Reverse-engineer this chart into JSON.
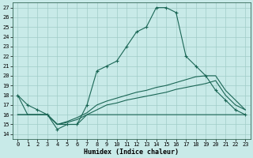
{
  "background_color": "#c8eae8",
  "grid_color": "#a0ccc8",
  "line_color": "#1a6655",
  "xlim": [
    -0.5,
    23.5
  ],
  "ylim": [
    13.5,
    27.5
  ],
  "xtick_vals": [
    0,
    1,
    2,
    3,
    4,
    5,
    6,
    7,
    8,
    9,
    10,
    11,
    12,
    13,
    14,
    15,
    16,
    17,
    18,
    19,
    20,
    21,
    22,
    23
  ],
  "ytick_vals": [
    14,
    15,
    16,
    17,
    18,
    19,
    20,
    21,
    22,
    23,
    24,
    25,
    26,
    27
  ],
  "xlabel": "Humidex (Indice chaleur)",
  "series_main_y": [
    18,
    17,
    16.5,
    16,
    14.5,
    15,
    15,
    17,
    20.5,
    21,
    21.5,
    23,
    24.5,
    25,
    27,
    27,
    26.5,
    22,
    21,
    20,
    18.5,
    17.5,
    16.5,
    16
  ],
  "series_flat_y": [
    16,
    16,
    16,
    16,
    15,
    15,
    15,
    16,
    16,
    16,
    16,
    16,
    16,
    16,
    16,
    16,
    16,
    16,
    16,
    16,
    16,
    16,
    16,
    16
  ],
  "series_diag1_y": [
    16,
    16,
    16,
    16,
    15,
    15.2,
    15.5,
    16,
    16.5,
    17,
    17.2,
    17.5,
    17.7,
    17.9,
    18.1,
    18.3,
    18.6,
    18.8,
    19.0,
    19.2,
    19.5,
    18,
    17,
    16.5
  ],
  "series_diag2_y": [
    18,
    16,
    16,
    16,
    15,
    15.3,
    15.7,
    16.2,
    17,
    17.4,
    17.7,
    18.0,
    18.3,
    18.5,
    18.8,
    19.0,
    19.3,
    19.6,
    19.9,
    20.0,
    20.0,
    18.5,
    17.5,
    16.5
  ],
  "tick_fontsize": 5.0,
  "xlabel_fontsize": 6.0,
  "linewidth": 0.8,
  "markersize": 3.0
}
